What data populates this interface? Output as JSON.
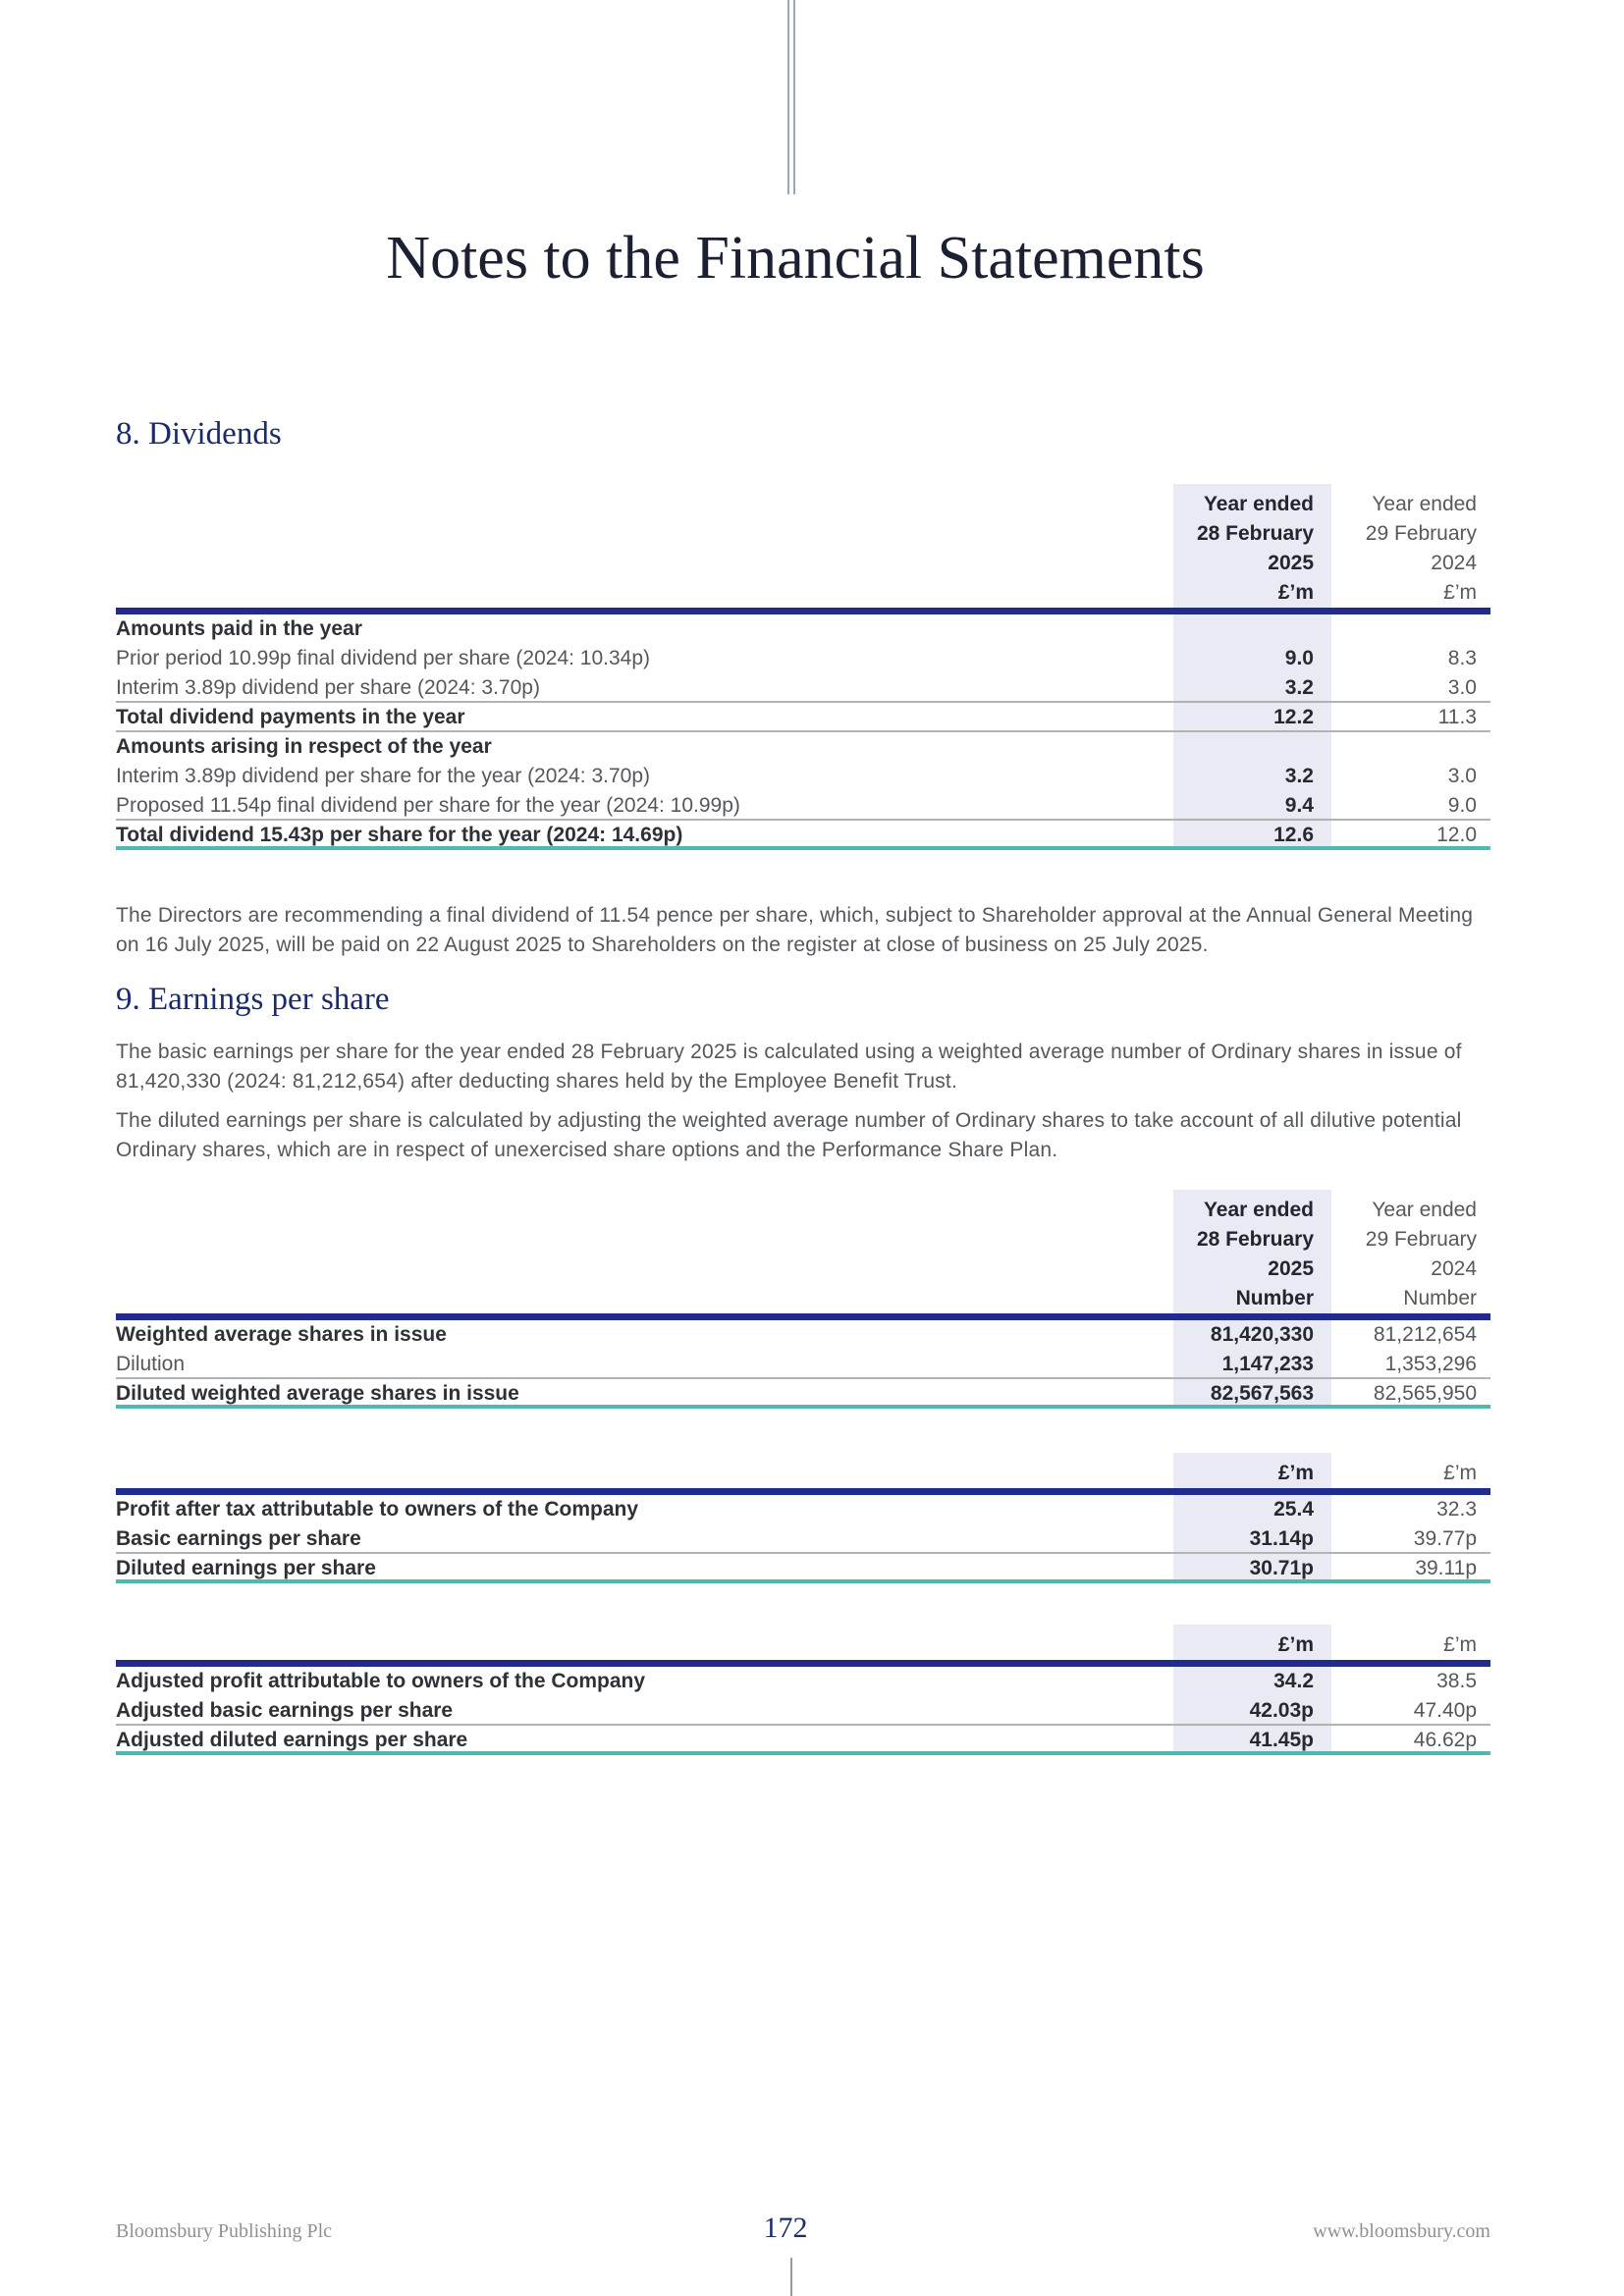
{
  "page": {
    "title": "Notes to the Financial Statements",
    "footer": {
      "company": "Bloomsbury Publishing Plc",
      "page_number": "172",
      "website": "www.bloomsbury.com"
    }
  },
  "colors": {
    "navy_rule": "#1f2b8f",
    "teal_rule": "#4fb9b1",
    "shade": "#e9eaf4",
    "heading_navy": "#1b2a6b",
    "title_ink": "#1c2033",
    "text_grey": "#54575c",
    "text_dark": "#2e3136",
    "rule_grey": "#b3b3b3",
    "footer_grey": "#8e9092",
    "top_line": "#9aa8ba"
  },
  "dividends": {
    "heading": "8. Dividends",
    "table": {
      "header": {
        "current": [
          "Year ended",
          "28 February",
          "2025",
          "£’m"
        ],
        "prior": [
          "Year ended",
          "29 February",
          "2024",
          "£’m"
        ]
      },
      "rows": [
        {
          "label": "Amounts paid in the year",
          "current": "",
          "prior": ""
        },
        {
          "label": "Prior period 10.99p final dividend per share (2024: 10.34p)",
          "current": "9.0",
          "prior": "8.3"
        },
        {
          "label": "Interim 3.89p dividend per share (2024: 3.70p)",
          "current": "3.2",
          "prior": "3.0"
        },
        {
          "label": "Total dividend payments in the year",
          "current": "12.2",
          "prior": "11.3"
        },
        {
          "label": "Amounts arising in respect of the year",
          "current": "",
          "prior": ""
        },
        {
          "label": "Interim 3.89p dividend per share for the year (2024: 3.70p)",
          "current": "3.2",
          "prior": "3.0"
        },
        {
          "label": "Proposed 11.54p final dividend per share for the year (2024: 10.99p)",
          "current": "9.4",
          "prior": "9.0"
        },
        {
          "label": "Total dividend 15.43p per share for the year (2024: 14.69p)",
          "current": "12.6",
          "prior": "12.0"
        }
      ]
    },
    "paragraph": "The Directors are recommending a final dividend of 11.54 pence per share, which, subject to Shareholder approval at the Annual General Meeting on 16 July 2025, will be paid on 22 August 2025 to Shareholders on the register at close of business on 25 July 2025."
  },
  "eps": {
    "heading": "9. Earnings per share",
    "paragraphs": [
      "The basic earnings per share for the year ended 28 February 2025 is calculated using a weighted average number of Ordinary shares in issue of 81,420,330 (2024: 81,212,654) after deducting shares held by the Employee Benefit Trust.",
      "The diluted earnings per share is calculated by adjusting the weighted average number of Ordinary shares to take account of all dilutive potential Ordinary shares, which are in respect of unexercised share options and the Performance Share Plan."
    ],
    "shares_table": {
      "header": {
        "current": [
          "Year ended",
          "28 February",
          "2025",
          "Number"
        ],
        "prior": [
          "Year ended",
          "29 February",
          "2024",
          "Number"
        ]
      },
      "rows": [
        {
          "label": "Weighted average shares in issue",
          "current": "81,420,330",
          "prior": "81,212,654"
        },
        {
          "label": "Dilution",
          "current": "1,147,233",
          "prior": "1,353,296"
        },
        {
          "label": "Diluted weighted average shares in issue",
          "current": "82,567,563",
          "prior": "82,565,950"
        }
      ]
    },
    "profit_table": {
      "header": {
        "current": "£’m",
        "prior": "£’m"
      },
      "rows": [
        {
          "label": "Profit after tax attributable to owners of the Company",
          "current": "25.4",
          "prior": "32.3"
        },
        {
          "label": "Basic earnings per share",
          "current": "31.14p",
          "prior": "39.77p"
        },
        {
          "label": "Diluted earnings per share",
          "current": "30.71p",
          "prior": "39.11p"
        }
      ]
    },
    "adjusted_table": {
      "header": {
        "current": "£’m",
        "prior": "£’m"
      },
      "rows": [
        {
          "label": "Adjusted profit attributable to owners of the Company",
          "current": "34.2",
          "prior": "38.5"
        },
        {
          "label": "Adjusted basic earnings per share",
          "current": "42.03p",
          "prior": "47.40p"
        },
        {
          "label": "Adjusted diluted earnings per share",
          "current": "41.45p",
          "prior": "46.62p"
        }
      ]
    }
  }
}
